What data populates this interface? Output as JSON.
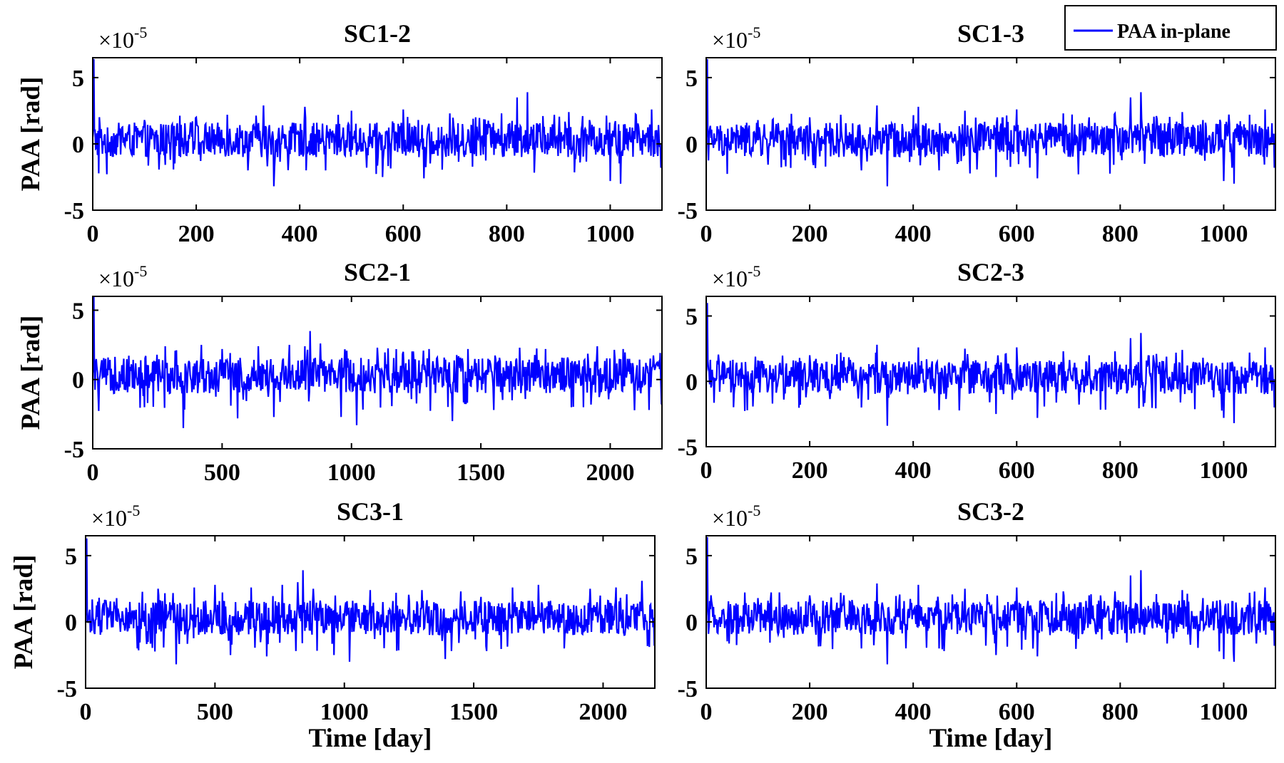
{
  "chart_data": [
    {
      "type": "line",
      "title": "SC1-2",
      "ylabel": "PAA [rad]",
      "xlabel": "",
      "y_multiplier": "×10",
      "y_exponent": "-5",
      "xlim": [
        0,
        1100
      ],
      "ylim": [
        -5,
        6.5
      ],
      "x_ticks": [
        "0",
        "200",
        "400",
        "600",
        "800",
        "1000"
      ],
      "x_tick_values": [
        0,
        200,
        400,
        600,
        800,
        1000
      ],
      "y_ticks": [
        "-5",
        "0",
        "5"
      ],
      "y_tick_values": [
        -5,
        0,
        5
      ],
      "series": [
        {
          "name": "PAA in-plane",
          "color": "#0000ff",
          "x": [
            0,
            2,
            20,
            60,
            100,
            150,
            200,
            260,
            300,
            330,
            350,
            380,
            410,
            450,
            500,
            560,
            600,
            640,
            690,
            740,
            790,
            820,
            840,
            870,
            920,
            960,
            1000,
            1020,
            1050,
            1080,
            1098
          ],
          "y": [
            0.5,
            6.4,
            0.2,
            0.5,
            1.8,
            -1.2,
            2.0,
            2.2,
            -2.0,
            2.9,
            -3.2,
            1.0,
            2.8,
            -2.0,
            2.5,
            -2.5,
            2.6,
            -2.6,
            2.3,
            2.0,
            2.3,
            3.5,
            3.9,
            2.1,
            2.4,
            1.8,
            -2.8,
            -3.0,
            2.2,
            2.6,
            -1.8
          ]
        }
      ]
    },
    {
      "type": "line",
      "title": "SC1-3",
      "ylabel": "",
      "xlabel": "",
      "y_multiplier": "×10",
      "y_exponent": "-5",
      "xlim": [
        0,
        1100
      ],
      "ylim": [
        -5,
        6.5
      ],
      "x_ticks": [
        "0",
        "200",
        "400",
        "600",
        "800",
        "1000"
      ],
      "x_tick_values": [
        0,
        200,
        400,
        600,
        800,
        1000
      ],
      "y_ticks": [
        "-5",
        "0",
        "5"
      ],
      "y_tick_values": [
        -5,
        0,
        5
      ],
      "series": [
        {
          "name": "PAA in-plane",
          "color": "#0000ff",
          "x": [
            0,
            2,
            20,
            60,
            100,
            150,
            200,
            260,
            300,
            330,
            350,
            380,
            410,
            450,
            500,
            560,
            600,
            640,
            690,
            740,
            790,
            820,
            840,
            870,
            920,
            960,
            1000,
            1020,
            1050,
            1080,
            1098
          ],
          "y": [
            0.5,
            6.4,
            0.2,
            0.5,
            1.8,
            -1.2,
            2.0,
            2.2,
            -2.0,
            2.9,
            -3.2,
            1.0,
            2.8,
            -2.0,
            2.5,
            -2.5,
            2.6,
            -2.6,
            2.3,
            2.0,
            2.3,
            3.5,
            3.9,
            2.1,
            2.4,
            1.8,
            -2.8,
            -3.0,
            2.2,
            2.6,
            -1.8
          ]
        }
      ]
    },
    {
      "type": "line",
      "title": "SC2-1",
      "ylabel": "PAA [rad]",
      "xlabel": "",
      "y_multiplier": "×10",
      "y_exponent": "-5",
      "xlim": [
        0,
        2200
      ],
      "ylim": [
        -5,
        6
      ],
      "x_ticks": [
        "0",
        "500",
        "1000",
        "1500",
        "2000"
      ],
      "x_tick_values": [
        0,
        500,
        1000,
        1500,
        2000
      ],
      "y_ticks": [
        "-5",
        "0",
        "5"
      ],
      "y_tick_values": [
        -5,
        0,
        5
      ],
      "series": [
        {
          "name": "PAA in-plane",
          "color": "#0000ff",
          "x": [
            0,
            4,
            40,
            120,
            200,
            280,
            350,
            420,
            500,
            560,
            640,
            700,
            760,
            820,
            840,
            880,
            960,
            1020,
            1100,
            1200,
            1300,
            1390,
            1450,
            1550,
            1650,
            1750,
            1850,
            1950,
            2050,
            2150,
            2198
          ],
          "y": [
            0.5,
            6.0,
            0.2,
            1.5,
            -2.0,
            2.4,
            -3.5,
            2.5,
            2.2,
            -2.8,
            2.4,
            -2.7,
            2.5,
            2.4,
            3.5,
            2.6,
            -2.7,
            -3.3,
            2.3,
            2.0,
            2.2,
            -3.0,
            2.2,
            -2.2,
            2.3,
            2.2,
            -2.0,
            2.4,
            2.2,
            -2.2,
            -1.8
          ]
        }
      ]
    },
    {
      "type": "line",
      "title": "SC2-3",
      "ylabel": "",
      "xlabel": "",
      "y_multiplier": "×10",
      "y_exponent": "-5",
      "xlim": [
        0,
        1100
      ],
      "ylim": [
        -5,
        6.5
      ],
      "x_ticks": [
        "0",
        "200",
        "400",
        "600",
        "800",
        "1000"
      ],
      "x_tick_values": [
        0,
        200,
        400,
        600,
        800,
        1000
      ],
      "y_ticks": [
        "-5",
        "0",
        "5"
      ],
      "y_tick_values": [
        -5,
        0,
        5
      ],
      "series": [
        {
          "name": "PAA in-plane",
          "color": "#0000ff",
          "x": [
            0,
            2,
            20,
            60,
            100,
            150,
            200,
            260,
            300,
            330,
            350,
            380,
            410,
            450,
            500,
            560,
            600,
            640,
            690,
            740,
            790,
            820,
            840,
            870,
            920,
            960,
            1000,
            1020,
            1050,
            1080,
            1098
          ],
          "y": [
            0.5,
            6.0,
            0.2,
            0.5,
            1.6,
            -1.4,
            2.0,
            2.2,
            -2.0,
            2.8,
            -3.4,
            1.0,
            2.6,
            -2.2,
            2.5,
            -2.5,
            2.6,
            -2.8,
            2.3,
            2.0,
            2.3,
            3.3,
            3.7,
            2.1,
            2.4,
            1.8,
            -2.8,
            -3.2,
            2.2,
            2.6,
            -2.0
          ]
        }
      ]
    },
    {
      "type": "line",
      "title": "SC3-1",
      "ylabel": "PAA [rad]",
      "xlabel": "Time [day]",
      "y_multiplier": "×10",
      "y_exponent": "-5",
      "xlim": [
        0,
        2200
      ],
      "ylim": [
        -5,
        6.5
      ],
      "x_ticks": [
        "0",
        "500",
        "1000",
        "1500",
        "2000"
      ],
      "x_tick_values": [
        0,
        500,
        1000,
        1500,
        2000
      ],
      "y_ticks": [
        "-5",
        "0",
        "5"
      ],
      "y_tick_values": [
        -5,
        0,
        5
      ],
      "series": [
        {
          "name": "PAA in-plane",
          "color": "#0000ff",
          "x": [
            0,
            4,
            40,
            120,
            200,
            280,
            350,
            420,
            500,
            560,
            640,
            700,
            760,
            820,
            840,
            880,
            960,
            1020,
            1100,
            1200,
            1300,
            1390,
            1450,
            1550,
            1650,
            1750,
            1850,
            1950,
            2050,
            2150,
            2198
          ],
          "y": [
            0.5,
            6.3,
            0.2,
            1.8,
            -2.0,
            2.5,
            -3.2,
            2.6,
            2.8,
            -2.5,
            2.6,
            -2.6,
            2.8,
            3.0,
            3.9,
            2.5,
            -2.5,
            -3.0,
            2.4,
            2.2,
            2.4,
            -2.8,
            2.3,
            -2.2,
            2.6,
            2.8,
            -2.0,
            2.5,
            2.6,
            3.1,
            -1.8
          ]
        }
      ]
    },
    {
      "type": "line",
      "title": "SC3-2",
      "ylabel": "",
      "xlabel": "Time [day]",
      "y_multiplier": "×10",
      "y_exponent": "-5",
      "xlim": [
        0,
        1100
      ],
      "ylim": [
        -5,
        6.5
      ],
      "x_ticks": [
        "0",
        "200",
        "400",
        "600",
        "800",
        "1000"
      ],
      "x_tick_values": [
        0,
        200,
        400,
        600,
        800,
        1000
      ],
      "y_ticks": [
        "-5",
        "0",
        "5"
      ],
      "y_tick_values": [
        -5,
        0,
        5
      ],
      "series": [
        {
          "name": "PAA in-plane",
          "color": "#0000ff",
          "x": [
            0,
            2,
            20,
            60,
            100,
            150,
            200,
            260,
            300,
            330,
            350,
            380,
            410,
            450,
            500,
            560,
            600,
            640,
            690,
            740,
            790,
            820,
            840,
            870,
            920,
            960,
            1000,
            1020,
            1050,
            1080,
            1098
          ],
          "y": [
            0.5,
            6.4,
            0.2,
            0.5,
            1.8,
            -1.2,
            2.0,
            2.2,
            -2.0,
            2.9,
            -3.2,
            1.0,
            2.8,
            -2.0,
            2.5,
            -2.5,
            2.6,
            -2.6,
            2.3,
            2.0,
            2.3,
            3.5,
            3.9,
            2.1,
            2.4,
            1.8,
            -2.8,
            -3.0,
            2.2,
            2.6,
            -1.8
          ]
        }
      ]
    }
  ],
  "legend": {
    "label": "PAA in-plane",
    "color": "#0000ff",
    "placement": "top-right"
  }
}
